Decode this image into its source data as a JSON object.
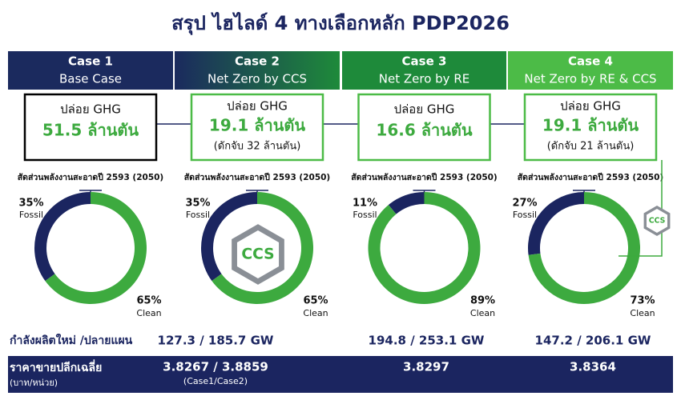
{
  "title": "สรุป ไฮไลด์ 4 ทางเลือกหลัก PDP2026",
  "cases": [
    {
      "name": "Case 1",
      "subtitle": "Base Case",
      "ghg_label": "ปล่อย GHG",
      "ghg": "51.5 ล้านตัน"
    },
    {
      "name": "Case 2",
      "subtitle": "Net Zero by CCS",
      "ghg_label": "ปล่อย GHG",
      "ghg": "19.1 ล้านตัน",
      "capture": "(ดักจับ 32 ล้านตัน)"
    },
    {
      "name": "Case 3",
      "subtitle": "Net Zero by RE",
      "ghg_label": "ปล่อย GHG",
      "ghg": "16.6 ล้านตัน"
    },
    {
      "name": "Case 4",
      "subtitle": "Net Zero by RE & CCS",
      "ghg_label": "ปล่อย GHG",
      "ghg": "19.1 ล้านตัน",
      "capture": "(ดักจับ 21 ล้านตัน)"
    }
  ],
  "ccs_icon": "CCS",
  "chart_data": [
    {
      "type": "pie",
      "title": "สัดส่วนพลังงานสะอาดปี 2593 (2050)",
      "categories": [
        "Fossil",
        "Clean"
      ],
      "values": [
        35,
        65
      ],
      "value_labels": [
        "35%",
        "65%"
      ],
      "colors": [
        "#1b2560",
        "#3daa3f"
      ]
    },
    {
      "type": "pie",
      "title": "สัดส่วนพลังงานสะอาดปี 2593 (2050)",
      "categories": [
        "Fossil",
        "Clean"
      ],
      "values": [
        35,
        65
      ],
      "value_labels": [
        "35%",
        "65%"
      ],
      "colors": [
        "#1b2560",
        "#3daa3f"
      ]
    },
    {
      "type": "pie",
      "title": "สัดส่วนพลังงานสะอาดปี 2593 (2050)",
      "categories": [
        "Fossil",
        "Clean"
      ],
      "values": [
        11,
        89
      ],
      "value_labels": [
        "11%",
        "89%"
      ],
      "colors": [
        "#1b2560",
        "#3daa3f"
      ]
    },
    {
      "type": "pie",
      "title": "สัดส่วนพลังงานสะอาดปี 2593 (2050)",
      "categories": [
        "Fossil",
        "Clean"
      ],
      "values": [
        27,
        73
      ],
      "value_labels": [
        "27%",
        "73%"
      ],
      "colors": [
        "#1b2560",
        "#3daa3f"
      ]
    }
  ],
  "capacity": {
    "label": "กำลังผลิตใหม่ /ปลายแผน",
    "values": [
      "127.3  / 185.7 GW",
      "194.8 / 253.1 GW",
      "147.2 / 206.1 GW"
    ]
  },
  "price": {
    "label": "ราคาขายปลีกเฉลี่ย",
    "unit": "(บาท/หน่วย)",
    "values": [
      "3.8267 / 3.8859",
      "3.8297",
      "3.8364"
    ],
    "note": "(Case1/Case2)"
  }
}
